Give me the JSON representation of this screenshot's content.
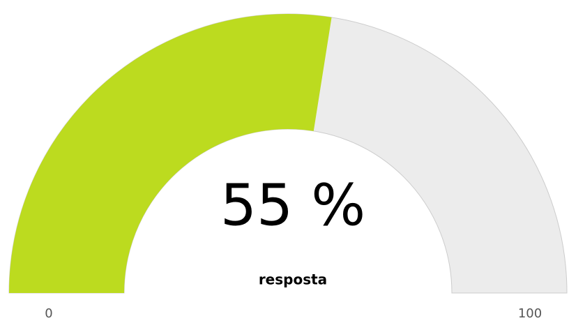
{
  "chart_data": {
    "type": "gauge",
    "title": "resposta",
    "values": [
      55
    ],
    "value_labels": [
      "55 %"
    ],
    "color": "#bcdb1f",
    "background_color": "#ececec",
    "ylim": [
      0,
      100
    ],
    "yticks": [
      0,
      100
    ]
  }
}
